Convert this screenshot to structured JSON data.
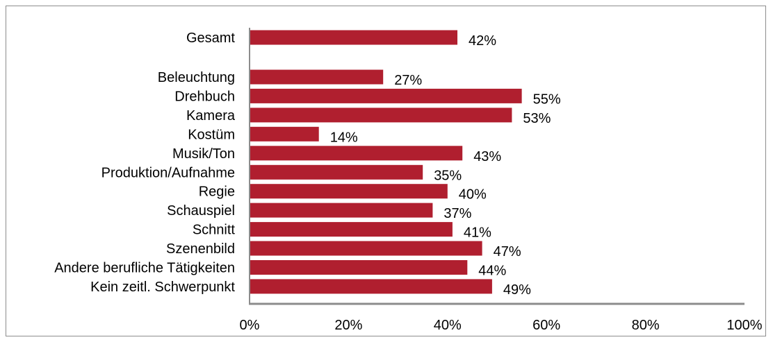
{
  "chart_data": {
    "type": "bar",
    "orientation": "horizontal",
    "categories": [
      "Gesamt",
      "Beleuchtung",
      "Drehbuch",
      "Kamera",
      "Kostüm",
      "Musik/Ton",
      "Produktion/Aufnahme",
      "Regie",
      "Schauspiel",
      "Schnitt",
      "Szenenbild",
      "Andere berufliche Tätigkeiten",
      "Kein zeitl. Schwerpunkt"
    ],
    "values": [
      42,
      27,
      55,
      53,
      14,
      43,
      35,
      40,
      37,
      41,
      47,
      44,
      49
    ],
    "value_labels": [
      "42%",
      "27%",
      "55%",
      "53%",
      "14%",
      "43%",
      "35%",
      "40%",
      "37%",
      "41%",
      "47%",
      "44%",
      "49%"
    ],
    "x_ticks": [
      "0%",
      "20%",
      "40%",
      "60%",
      "80%",
      "100%"
    ],
    "xlim": [
      0,
      100
    ],
    "title": "",
    "xlabel": "",
    "ylabel": "",
    "grid": false,
    "legend": "none",
    "colors": {
      "bar": "#b01f2f",
      "axis": "#8c8c8c",
      "frame": "#8c8c8c"
    }
  }
}
